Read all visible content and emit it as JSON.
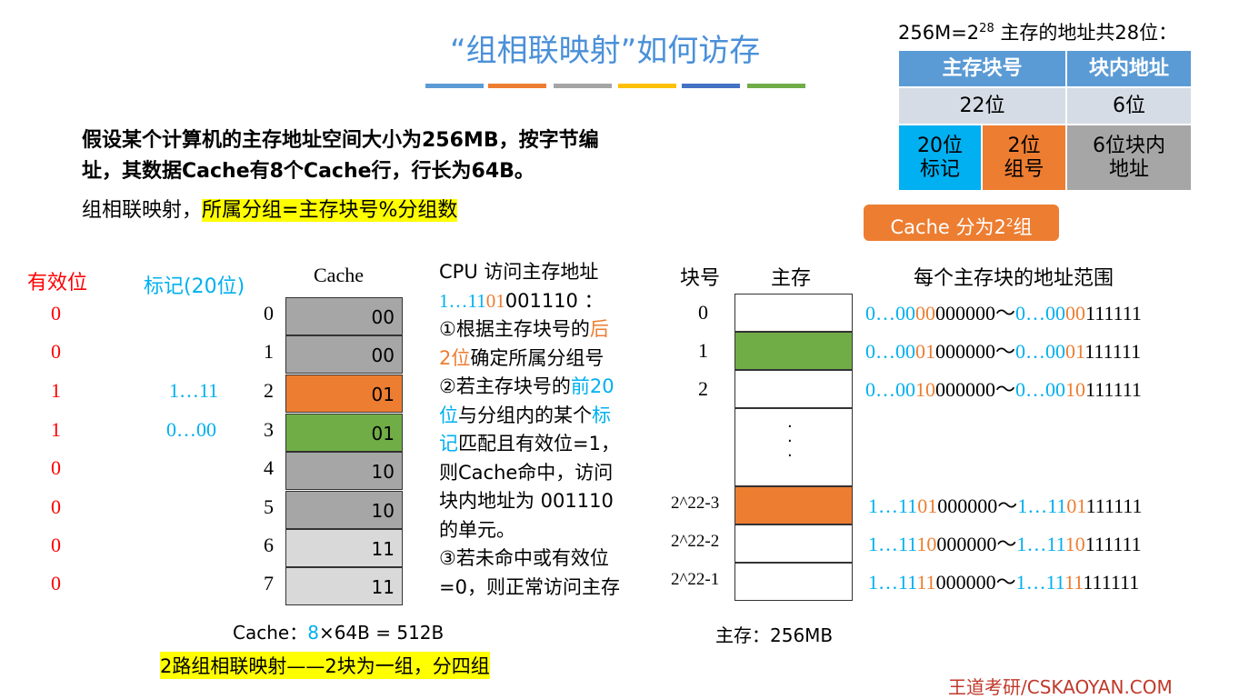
{
  "title": "“组相联映射”如何访存",
  "title_bar_colors": [
    "#5b9bd5",
    "#ed7d31",
    "#a5a5a5",
    "#ffc000",
    "#4472c4",
    "#70ad47"
  ],
  "intro": {
    "line1_a": "假设某个计算机的主存地址空间大小为256MB，按",
    "line1_b": "字节",
    "line1_c": "编",
    "line2": "址，其数据Cache有8个Cache行，行长为64B。",
    "rule_a": "组相联映射，",
    "rule_b": "所属分组=主存块号%分组数"
  },
  "addr": {
    "caption_a": "256M=2",
    "caption_exp": "28",
    "caption_b": " 主存的地址共28位：",
    "h1": "主存块号",
    "h2": "块内地址",
    "r1c1": "22位",
    "r1c2": "6位",
    "tag": "20位\n标记",
    "group": "2位\n组号",
    "offset": "6位块内\n地址",
    "callout_a": "Cache 分为2",
    "callout_exp": "2",
    "callout_b": "组"
  },
  "cache": {
    "valid_label": "有效位",
    "tag_label": "标记(20位)",
    "title": "Cache",
    "valid": [
      "0",
      "0",
      "1",
      "1",
      "0",
      "0",
      "0",
      "0"
    ],
    "tags": [
      "",
      "",
      "1…11",
      "0…00",
      "",
      "",
      "",
      ""
    ],
    "index": [
      "0",
      "1",
      "2",
      "3",
      "4",
      "5",
      "6",
      "7"
    ],
    "groups": [
      "00",
      "00",
      "01",
      "01",
      "10",
      "10",
      "11",
      "11"
    ],
    "colors": [
      "#a6a6a6",
      "#a6a6a6",
      "#ed7d31",
      "#70ad47",
      "#a6a6a6",
      "#a6a6a6",
      "#d9d9d9",
      "#d9d9d9"
    ],
    "size_a": "Cache：",
    "size_b": "8",
    "size_c": "×64B = 512B",
    "note": "2路组相联映射——2块为一组，分四组"
  },
  "cpu": {
    "l1": "CPU 访问主存地址",
    "addr_blue": "1…11",
    "addr_org": "01",
    "addr_black": "001110 ：",
    "s1a": "①根据主存块号的",
    "s1b": "后",
    "s1c": "2位",
    "s1d": "确定所属分组号",
    "s2a": "②若主存块号的",
    "s2b": "前20",
    "s2c": "位",
    "s2d": "与分组内的某个",
    "s2e": "标",
    "s2f": "记",
    "s2g": "匹配且有效位=1，",
    "s2h": "则Cache命中，访问",
    "s2i": "块内地址为 001110",
    "s2j": "的单元。",
    "s3a": "③若未命中或有效位",
    "s3b": "=0，则正常访问主存"
  },
  "mem": {
    "block_label": "块号",
    "mem_label": "主存",
    "range_label": "每个主存块的地址范围",
    "blocks": [
      "0",
      "1",
      "2",
      "2^22-3",
      "2^22-2",
      "2^22-1"
    ],
    "dots": "·\n·\n·",
    "size": "主存：256MB",
    "ranges": [
      [
        "0…00",
        "00",
        "000000",
        "0…00",
        "00",
        "111111"
      ],
      [
        "0…00",
        "01",
        "000000",
        "0…00",
        "01",
        "111111"
      ],
      [
        "0…00",
        "10",
        "000000",
        "0…00",
        "10",
        "111111"
      ],
      [
        "1…11",
        "01",
        "000000",
        "1…11",
        "01",
        "111111"
      ],
      [
        "1…11",
        "10",
        "000000",
        "1…11",
        "10",
        "111111"
      ],
      [
        "1…11",
        "11",
        "000000",
        "1…11",
        "11",
        "111111"
      ]
    ],
    "tilde": "～"
  },
  "footer": "王道考研/CSKAOYAN.COM"
}
